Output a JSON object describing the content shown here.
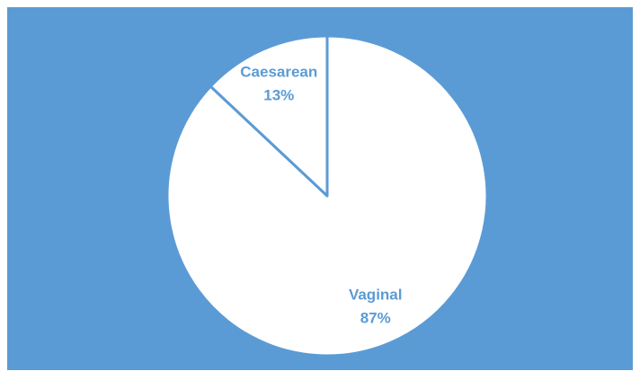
{
  "chart_data": {
    "type": "pie",
    "categories": [
      "Vaginal",
      "Caesarean"
    ],
    "values": [
      87,
      13
    ],
    "value_labels": [
      "87%",
      "13%"
    ],
    "colors": [
      "#ffffff",
      "#ffffff"
    ],
    "background": "#5b9bd5",
    "edge_color": "#5b9bd5",
    "label_color": "#5b9bd5"
  }
}
